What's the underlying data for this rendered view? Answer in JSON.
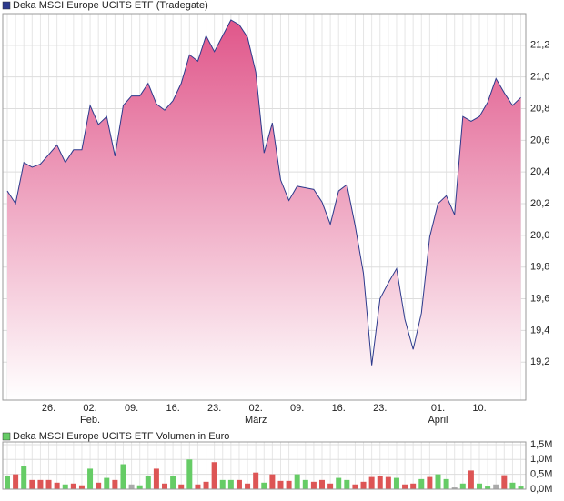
{
  "chart_data": [
    {
      "type": "area",
      "series": [
        {
          "name": "Deka MSCI Europe UCITS ETF (Tradegate)",
          "color": "#2d3a8c",
          "values": [
            20.28,
            20.2,
            20.46,
            20.43,
            20.45,
            20.51,
            20.57,
            20.46,
            20.54,
            20.54,
            20.82,
            20.7,
            20.75,
            20.5,
            20.82,
            20.88,
            20.88,
            20.96,
            20.83,
            20.79,
            20.85,
            20.96,
            21.14,
            21.1,
            21.26,
            21.16,
            21.26,
            21.36,
            21.33,
            21.25,
            21.03,
            20.52,
            20.71,
            20.35,
            20.22,
            20.31,
            20.3,
            20.29,
            20.21,
            20.07,
            20.28,
            20.32,
            20.06,
            19.76,
            19.18,
            19.6,
            19.7,
            19.79,
            19.47,
            19.28,
            19.51,
            19.99,
            20.2,
            20.25,
            20.13,
            20.75,
            20.72,
            20.75,
            20.84,
            20.99,
            20.9,
            20.82,
            20.87
          ]
        }
      ],
      "x": [
        0,
        1,
        2,
        3,
        4,
        5,
        6,
        7,
        8,
        9,
        10,
        11,
        12,
        13,
        14,
        15,
        16,
        17,
        18,
        19,
        20,
        21,
        22,
        23,
        24,
        25,
        26,
        27,
        28,
        29,
        30,
        31,
        32,
        33,
        34,
        35,
        36,
        37,
        38,
        39,
        40,
        41,
        42,
        43,
        44,
        45,
        46,
        47,
        48,
        49,
        50,
        51,
        52,
        53,
        54,
        55,
        56,
        57,
        58,
        59,
        60,
        61,
        62
      ],
      "xlim": [
        -0.55,
        62.6
      ],
      "xticks": [
        {
          "value": 5,
          "label": "26."
        },
        {
          "value": 10,
          "label": "02."
        },
        {
          "value": 15,
          "label": "09."
        },
        {
          "value": 20,
          "label": "16."
        },
        {
          "value": 25,
          "label": "23."
        },
        {
          "value": 30,
          "label": "02."
        },
        {
          "value": 35,
          "label": "09."
        },
        {
          "value": 40,
          "label": "16."
        },
        {
          "value": 45,
          "label": "23."
        },
        {
          "value": 52,
          "label": "01."
        },
        {
          "value": 57,
          "label": "10."
        }
      ],
      "month_labels": [
        {
          "value": 10,
          "label": "Feb."
        },
        {
          "value": 30,
          "label": "März"
        },
        {
          "value": 52,
          "label": "April"
        }
      ],
      "ylim": [
        18.96,
        21.4
      ],
      "yticks": [
        {
          "value": 19.2,
          "label": "19,2"
        },
        {
          "value": 19.4,
          "label": "19,4"
        },
        {
          "value": 19.6,
          "label": "19,6"
        },
        {
          "value": 19.8,
          "label": "19,8"
        },
        {
          "value": 20.0,
          "label": "20,0"
        },
        {
          "value": 20.2,
          "label": "20,2"
        },
        {
          "value": 20.4,
          "label": "20,4"
        },
        {
          "value": 20.6,
          "label": "20,6"
        },
        {
          "value": 20.8,
          "label": "20,8"
        },
        {
          "value": 21.0,
          "label": "21,0"
        },
        {
          "value": 21.2,
          "label": "21,2"
        }
      ],
      "grid": true
    },
    {
      "type": "bar",
      "series": [
        {
          "name": "Deka MSCI Europe UCITS ETF Volumen in Euro",
          "color": "#66cc66",
          "values": [
            440000,
            500000,
            780000,
            310000,
            310000,
            310000,
            220000,
            160000,
            190000,
            130000,
            690000,
            220000,
            380000,
            310000,
            840000,
            160000,
            130000,
            440000,
            690000,
            190000,
            440000,
            160000,
            1000000,
            160000,
            250000,
            910000,
            310000,
            310000,
            310000,
            190000,
            560000,
            220000,
            500000,
            280000,
            280000,
            500000,
            310000,
            250000,
            310000,
            190000,
            380000,
            310000,
            160000,
            250000,
            410000,
            440000,
            410000,
            380000,
            160000,
            190000,
            340000,
            410000,
            500000,
            340000,
            60000,
            190000,
            630000,
            190000,
            90000,
            160000,
            470000,
            220000,
            90000
          ],
          "colors": [
            "#66cc66",
            "#dd5555",
            "#66cc66",
            "#dd5555",
            "#dd5555",
            "#dd5555",
            "#dd5555",
            "#66cc66",
            "#dd5555",
            "#dd5555",
            "#66cc66",
            "#dd5555",
            "#66cc66",
            "#dd5555",
            "#66cc66",
            "#aaaaaa",
            "#66cc66",
            "#66cc66",
            "#dd5555",
            "#dd5555",
            "#66cc66",
            "#dd5555",
            "#66cc66",
            "#dd5555",
            "#dd5555",
            "#dd5555",
            "#66cc66",
            "#66cc66",
            "#dd5555",
            "#dd5555",
            "#dd5555",
            "#66cc66",
            "#dd5555",
            "#dd5555",
            "#dd5555",
            "#66cc66",
            "#66cc66",
            "#dd5555",
            "#dd5555",
            "#dd5555",
            "#66cc66",
            "#66cc66",
            "#dd5555",
            "#dd5555",
            "#dd5555",
            "#dd5555",
            "#dd5555",
            "#66cc66",
            "#dd5555",
            "#dd5555",
            "#66cc66",
            "#dd5555",
            "#66cc66",
            "#66cc66",
            "#aaaaaa",
            "#66cc66",
            "#dd5555",
            "#66cc66",
            "#66cc66",
            "#aaaaaa",
            "#dd5555",
            "#66cc66",
            "#66cc66"
          ]
        }
      ],
      "ylim": [
        0,
        1590000
      ],
      "yticks": [
        {
          "value": 0,
          "label": "0,0M"
        },
        {
          "value": 500000,
          "label": "0,5M"
        },
        {
          "value": 1000000,
          "label": "1,0M"
        },
        {
          "value": 1500000,
          "label": "1,5M"
        }
      ],
      "grid": true
    }
  ]
}
